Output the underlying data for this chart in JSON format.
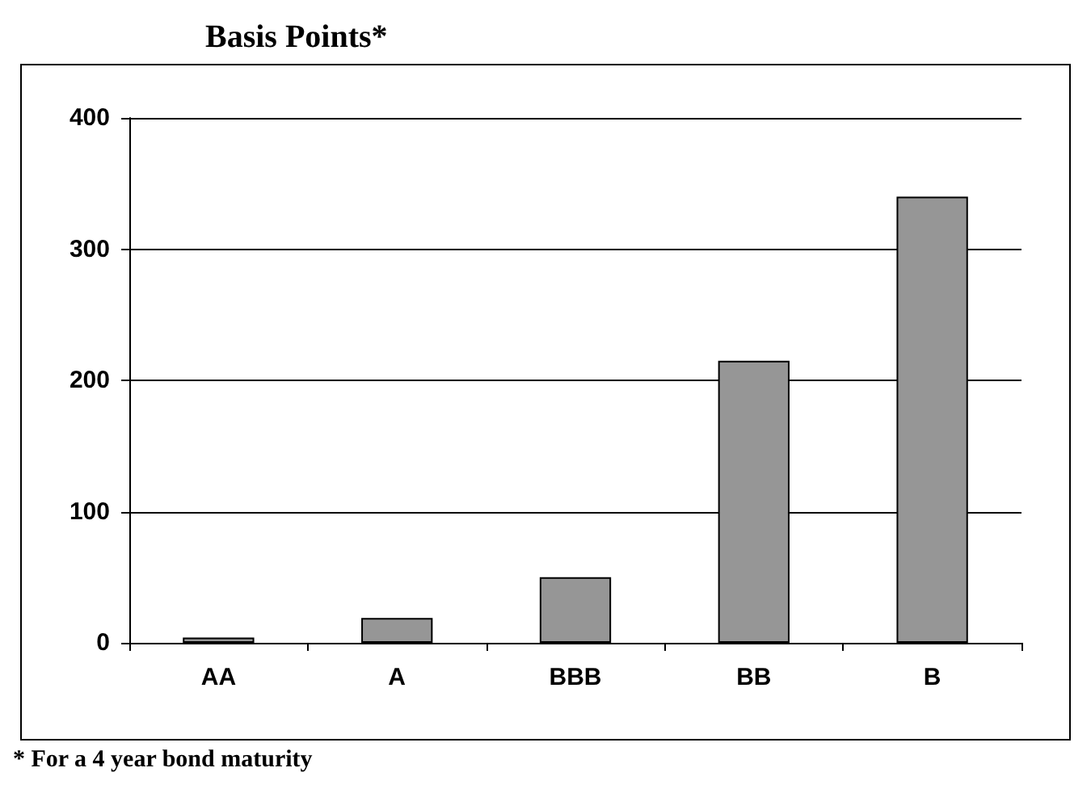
{
  "chart_data": {
    "type": "bar",
    "title": "Basis Points*",
    "categories": [
      "AA",
      "A",
      "BBB",
      "BB",
      "B"
    ],
    "values": [
      4,
      19,
      50,
      215,
      340
    ],
    "color": "#969696",
    "ylim": [
      0,
      400
    ],
    "yticks": [
      0,
      100,
      200,
      300,
      400
    ],
    "grid": "y",
    "annotations": [
      "* For a 4 year bond maturity"
    ]
  }
}
